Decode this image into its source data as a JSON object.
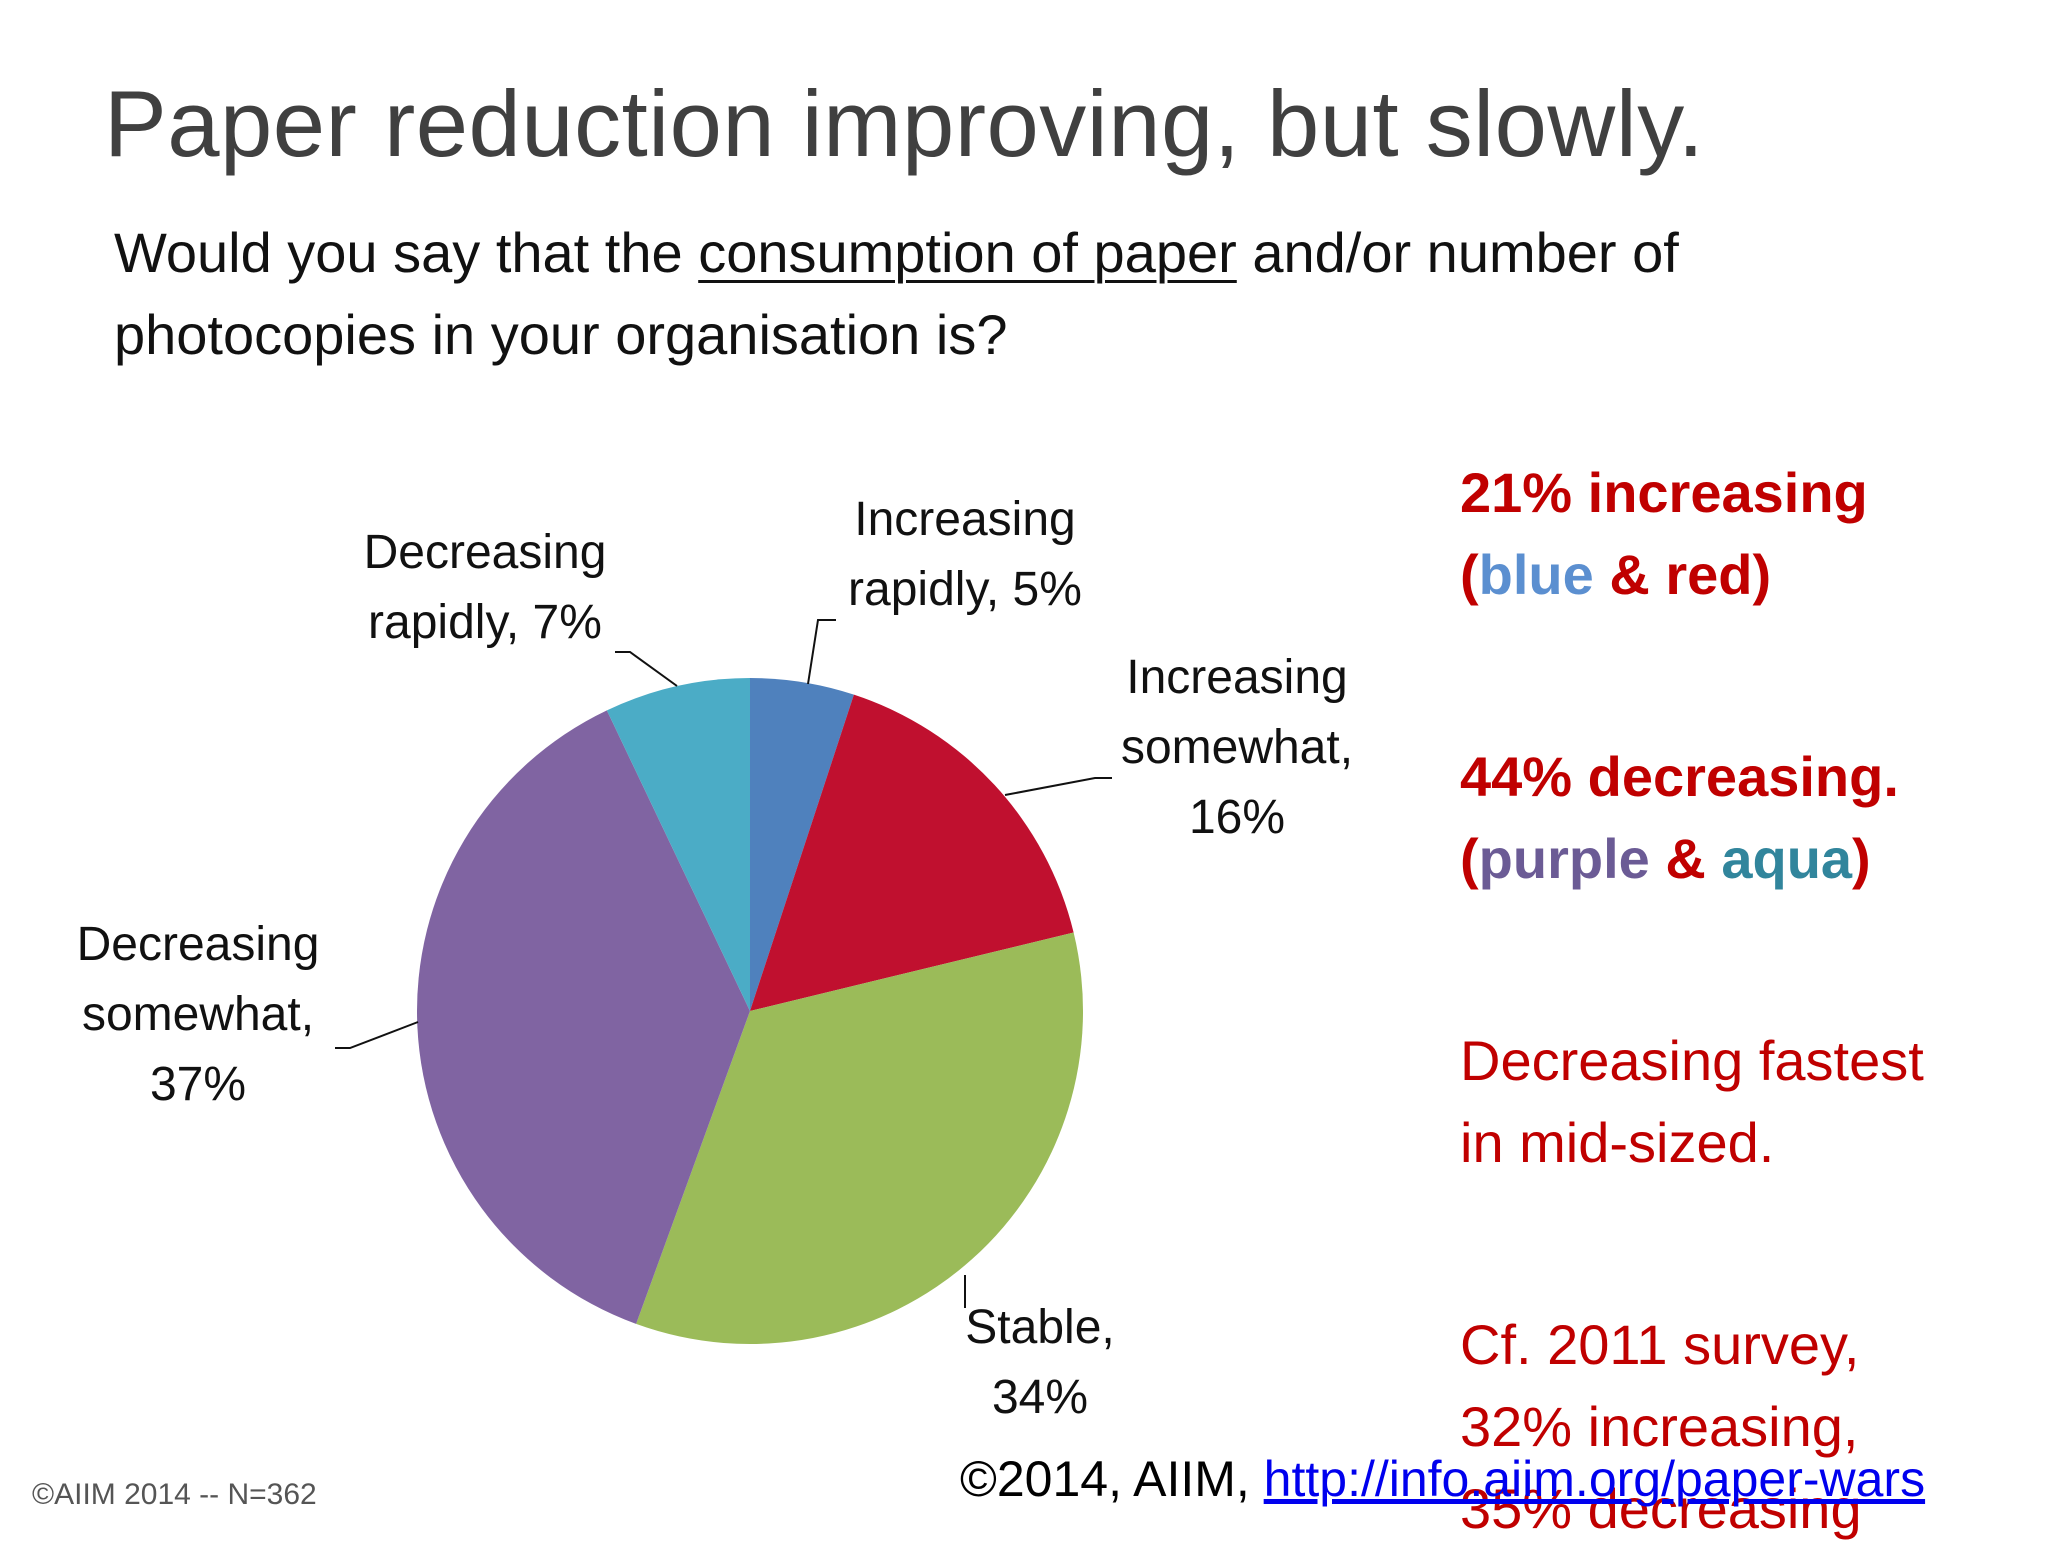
{
  "slide": {
    "title": "Paper reduction improving, but slowly.",
    "question_before": "Would you say that the ",
    "question_underlined": "consumption of paper",
    "question_after": " and/or number of photocopies in your organisation is?"
  },
  "chart_data": {
    "type": "pie",
    "slices": [
      {
        "label_line1": "Increasing",
        "label_line2": "rapidly, 5%",
        "label_line3": "",
        "value": 5,
        "color": "#4f81bd"
      },
      {
        "label_line1": "Increasing",
        "label_line2": "somewhat,",
        "label_line3": "16%",
        "value": 16,
        "color": "#c0102f"
      },
      {
        "label_line1": "Stable,",
        "label_line2": "34%",
        "label_line3": "",
        "value": 34,
        "color": "#9bbb59"
      },
      {
        "label_line1": "Decreasing",
        "label_line2": "somewhat,",
        "label_line3": "37%",
        "value": 37,
        "color": "#8064a2"
      },
      {
        "label_line1": "Decreasing",
        "label_line2": "rapidly, 7%",
        "label_line3": "",
        "value": 7,
        "color": "#4bacc6"
      }
    ]
  },
  "notes": {
    "increasing_line1": "21% increasing",
    "increasing_open": "(",
    "increasing_blue": "blue",
    "increasing_amp": " & ",
    "increasing_red": "red",
    "increasing_close": ")",
    "decreasing_line1": "44% decreasing.",
    "decreasing_open": "(",
    "decreasing_purple": "purple",
    "decreasing_amp": " & ",
    "decreasing_aqua": "aqua",
    "decreasing_close": ")",
    "midsized_line1": "Decreasing fastest",
    "midsized_line2": "in mid-sized.",
    "survey_line1": "Cf. 2011 survey,",
    "survey_line2": "32% increasing,",
    "survey_line3": "35% decreasing"
  },
  "footer": {
    "left": "©AIIM 2014 -- N=362",
    "right_text": "©2014, AIIM, ",
    "right_link": "http://info.aiim.org/paper-wars"
  }
}
